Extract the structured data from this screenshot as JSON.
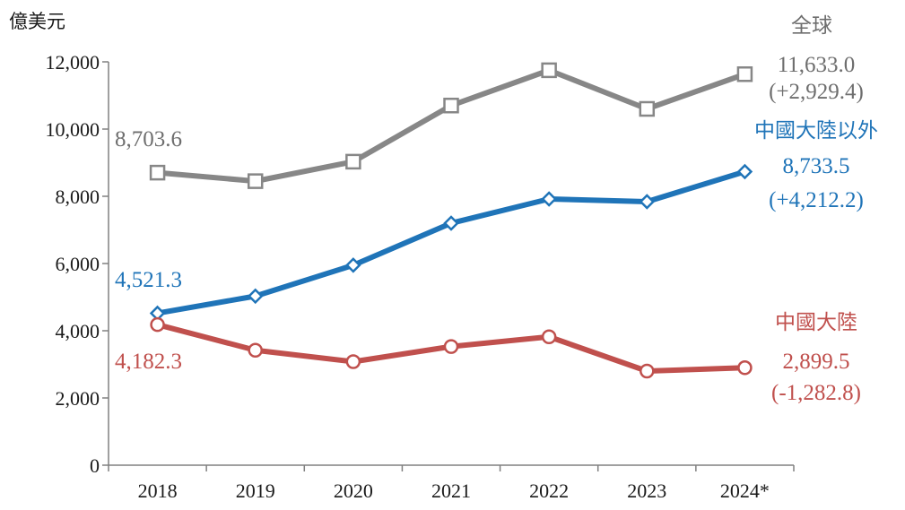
{
  "chart_data": {
    "type": "line",
    "ylabel": "億美元",
    "categories": [
      "2018",
      "2019",
      "2020",
      "2021",
      "2022",
      "2023",
      "2024*"
    ],
    "ylim": [
      0,
      12000
    ],
    "yticks": [
      "0",
      "2,000",
      "4,000",
      "6,000",
      "8,000",
      "10,000",
      "12,000"
    ],
    "grid": false,
    "series": [
      {
        "name": "全球",
        "color": "#878787",
        "marker": "square",
        "values": [
          8703.6,
          8450,
          9030,
          10700,
          11750,
          10600,
          11633.0
        ],
        "start_label": "8,703.6",
        "end_label": "11,633.0",
        "change_label": "(+2,929.4)"
      },
      {
        "name": "中國大陸以外",
        "color": "#1f74b8",
        "marker": "diamond",
        "values": [
          4521.3,
          5030,
          5950,
          7200,
          7920,
          7840,
          8733.5
        ],
        "start_label": "4,521.3",
        "end_label": "8,733.5",
        "change_label": "(+4,212.2)"
      },
      {
        "name": "中國大陸",
        "color": "#c0504d",
        "marker": "circle",
        "values": [
          4182.3,
          3420,
          3080,
          3530,
          3820,
          2800,
          2899.5
        ],
        "start_label": "4,182.3",
        "end_label": "2,899.5",
        "change_label": "(-1,282.8)"
      }
    ]
  }
}
